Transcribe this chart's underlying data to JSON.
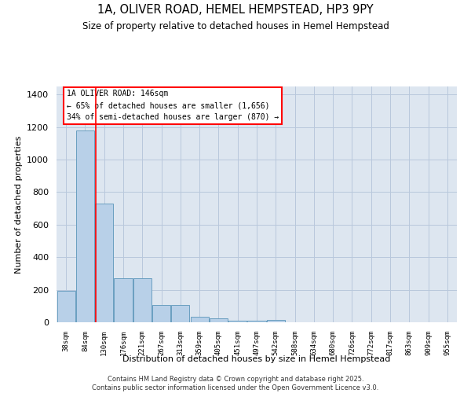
{
  "title1": "1A, OLIVER ROAD, HEMEL HEMPSTEAD, HP3 9PY",
  "title2": "Size of property relative to detached houses in Hemel Hempstead",
  "xlabel": "Distribution of detached houses by size in Hemel Hempstead",
  "ylabel": "Number of detached properties",
  "categories": [
    "38sqm",
    "84sqm",
    "130sqm",
    "176sqm",
    "221sqm",
    "267sqm",
    "313sqm",
    "359sqm",
    "405sqm",
    "451sqm",
    "497sqm",
    "542sqm",
    "588sqm",
    "634sqm",
    "680sqm",
    "726sqm",
    "772sqm",
    "817sqm",
    "863sqm",
    "909sqm",
    "955sqm"
  ],
  "values": [
    193,
    1180,
    728,
    270,
    270,
    105,
    105,
    32,
    22,
    10,
    10,
    15,
    0,
    0,
    0,
    0,
    0,
    0,
    0,
    0,
    0
  ],
  "bar_color": "#b8d0e8",
  "bar_edge_color": "#6a9fc0",
  "background_color": "#dde6f0",
  "grid_color": "#b8c8dc",
  "red_line_x": 1.55,
  "annotation_text": "1A OLIVER ROAD: 146sqm\n← 65% of detached houses are smaller (1,656)\n34% of semi-detached houses are larger (870) →",
  "footer1": "Contains HM Land Registry data © Crown copyright and database right 2025.",
  "footer2": "Contains public sector information licensed under the Open Government Licence v3.0.",
  "ylim": [
    0,
    1450
  ],
  "yticks": [
    0,
    200,
    400,
    600,
    800,
    1000,
    1200,
    1400
  ]
}
